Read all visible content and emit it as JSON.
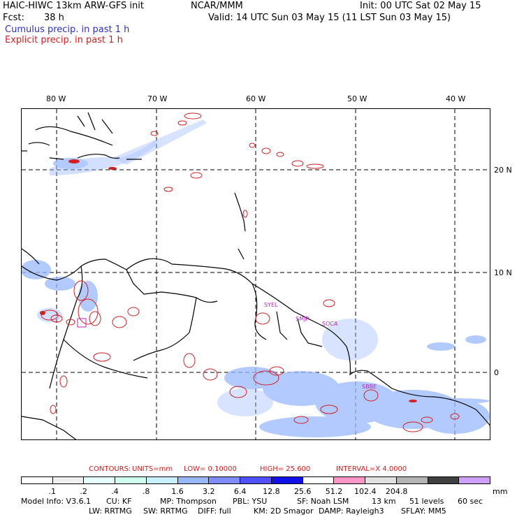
{
  "header": {
    "model": "HAIC-HIWC 13km ARW-GFS init",
    "org": "NCAR/MMM",
    "init": "Init: 00 UTC Sat 02 May 15",
    "fcst_label": "Fcst:",
    "fcst_value": "38 h",
    "valid": "Valid: 14 UTC Sun 03 May 15 (11 LST Sun 03 May 15)",
    "field1": "Cumulus precip. in past 1 h",
    "field2": "Explicit precip. in past 1 h"
  },
  "map": {
    "lon_labels": [
      "80 W",
      "70 W",
      "60 W",
      "50 W",
      "40 W"
    ],
    "lat_labels": [
      "20 N",
      "10 N",
      "0"
    ],
    "stations": [
      "SYEL",
      "SMJP",
      "SOCA",
      "SBBE"
    ]
  },
  "contours": {
    "title": "CONTOURS:",
    "units": "UNITS=mm",
    "low": "LOW= 0.10000",
    "high": "HIGH= 25.600",
    "interval": "INTERVAL=X 4.0000"
  },
  "colorbar": {
    "colors": [
      "#ffffff",
      "#f0f0f0",
      "#e6ffff",
      "#cfffef",
      "#c8f0ff",
      "#9ab8ff",
      "#7f8cff",
      "#5050ff",
      "#1010e8",
      "#ffffff",
      "#ff96c8",
      "#e0e0e0",
      "#b4b4b4",
      "#404040",
      "#d0a0ff"
    ],
    "labels": [
      ".1",
      ".2",
      ".4",
      ".8",
      "1.6",
      "3.2",
      "6.4",
      "12.8",
      "25.6",
      "51.2",
      "102.4",
      "204.8"
    ],
    "unit": "mm"
  },
  "model_info": {
    "line1": [
      "Model Info: V3.6.1",
      "CU: KF",
      "MP: Thompson",
      "PBL: YSU",
      "SF: Noah LSM",
      "13 km",
      "51 levels",
      "60 sec"
    ],
    "line2": [
      "LW: RRTMG",
      "SW: RRTMG",
      "DIFF: full",
      "KM: 2D Smagor",
      "DAMP: Rayleigh3",
      "SFLAY: MM5"
    ]
  }
}
